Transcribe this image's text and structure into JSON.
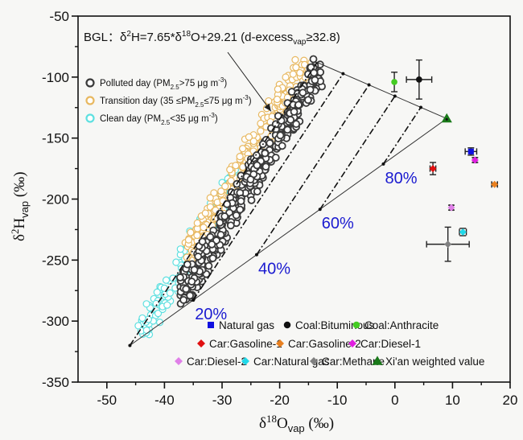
{
  "chart_data": {
    "type": "scatter",
    "xlabel": "δ18Ovap (‰)",
    "ylabel": "δ2Hvap (‰)",
    "xlim": [
      -55,
      20
    ],
    "ylim": [
      -350,
      -50
    ],
    "xticks": [
      -50,
      -40,
      -30,
      -20,
      -10,
      0,
      10,
      20
    ],
    "yticks": [
      -50,
      -100,
      -150,
      -200,
      -250,
      -300,
      -350
    ],
    "grid": false,
    "annotation": {
      "prefix": "BGL：δ",
      "sup1": "2",
      "mid": "H=7.65*δ",
      "sup2": "18",
      "mid2": "O+29.21 (d-excess",
      "sub": "vap",
      "suffix": "≥32.8)",
      "arrow_target": [
        -21.5,
        -128
      ]
    },
    "observation_series": [
      {
        "name": "Polluted day",
        "label_pre": "Polluted day (PM",
        "label_sub": "2.5",
        "label_post": ">75 μg m",
        "label_sup": "-3",
        "label_end": ")",
        "color": "#3a3a3a",
        "trend": {
          "x_range": [
            -37,
            -13
          ],
          "slope": 7.65,
          "intercept": 12
        }
      },
      {
        "name": "Transition day",
        "label_pre": "Transition day (35 ≤PM",
        "label_sub": "2.5",
        "label_post": "≤75 μg m",
        "label_sup": "-3",
        "label_end": ")",
        "color": "#e8b860",
        "trend": {
          "x_range": [
            -36,
            -15
          ],
          "slope": 7.65,
          "intercept": 29
        }
      },
      {
        "name": "Clean day",
        "label_pre": "Clean day (PM",
        "label_sub": "2.5",
        "label_post": "<35 μg m",
        "label_sup": "-3",
        "label_end": ")",
        "color": "#5ee0e0",
        "trend": {
          "x_range": [
            -44,
            -28
          ],
          "slope": 7.65,
          "intercept": 29
        }
      }
    ],
    "mixing_lines": {
      "apex": [
        9.0,
        -134
      ],
      "upper_end": [
        -13.5,
        -88
      ],
      "lower_end": [
        -46,
        -320
      ],
      "fractions": [
        "20%",
        "40%",
        "60%",
        "80%"
      ],
      "fraction_values": [
        0.2,
        0.4,
        0.6,
        0.8
      ]
    },
    "sources": [
      {
        "name": "Natural gas",
        "marker": "square",
        "color": "#1010e0",
        "x": 13.2,
        "y": -161,
        "xerr": 1.0,
        "yerr": 3
      },
      {
        "name": "Coal:Bituminous",
        "marker": "circle",
        "color": "#111111",
        "x": 4.2,
        "y": -102,
        "xerr": 2.2,
        "yerr": 16
      },
      {
        "name": "Coal:Anthracite",
        "marker": "circle",
        "color": "#44cc22",
        "x": -0.1,
        "y": -104,
        "xerr": 0,
        "yerr": 8
      },
      {
        "name": "Car:Gasoline-1",
        "marker": "diamond",
        "color": "#e01010",
        "x": 6.6,
        "y": -175,
        "xerr": 0.5,
        "yerr": 5
      },
      {
        "name": "Car:Gasoline-2",
        "marker": "diamond",
        "color": "#e88020",
        "x": 17.3,
        "y": -188,
        "xerr": 0.5,
        "yerr": 1
      },
      {
        "name": "Car:Diesel-1",
        "marker": "diamond",
        "color": "#e020e0",
        "x": 13.9,
        "y": -168,
        "xerr": 0.3,
        "yerr": 2
      },
      {
        "name": "Car:Diesel-2",
        "marker": "diamond",
        "color": "#e080e8",
        "x": 9.8,
        "y": -207,
        "xerr": 0.3,
        "yerr": 2
      },
      {
        "name": "Car:Natural gas",
        "marker": "diamond",
        "color": "#20d8e8",
        "x": 11.8,
        "y": -227,
        "xerr": 0.6,
        "yerr": 3
      },
      {
        "name": "Car:Methane",
        "marker": "diamond",
        "color": "#808080",
        "x": 9.2,
        "y": -237,
        "xerr": 3.7,
        "yerr": 14
      },
      {
        "name": "Xi'an weighted value",
        "marker": "triangle",
        "color": "#1a7a1a",
        "x": 9.0,
        "y": -134,
        "xerr": 0,
        "yerr": 0
      }
    ],
    "legend_position": "bottom-right"
  }
}
